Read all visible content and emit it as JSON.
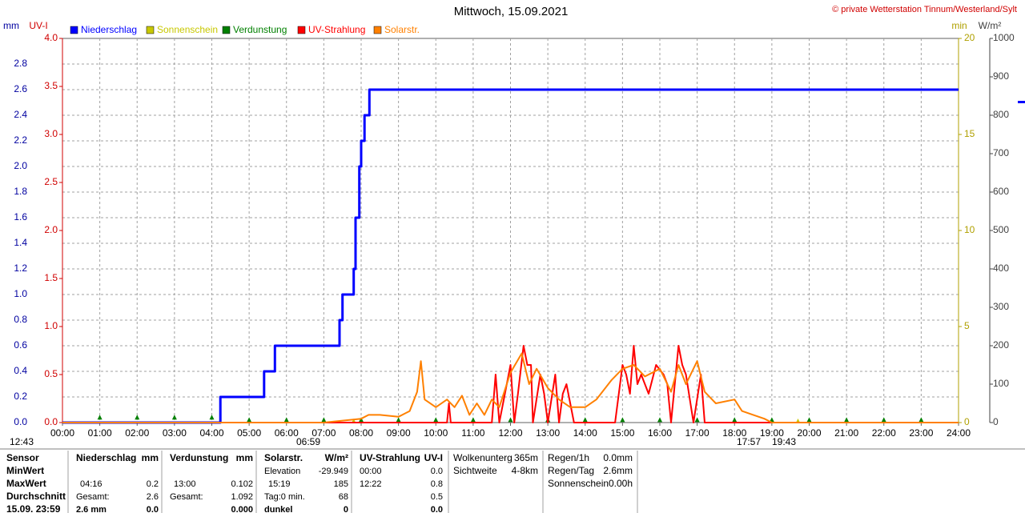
{
  "chart_data": {
    "type": "line",
    "title": "Mittwoch, 15.09.2021",
    "copyright": "© private Wetterstation Tinnum/Westerland/Sylt",
    "xlim": [
      0,
      24
    ],
    "xticks": [
      {
        "value": 0,
        "label": "00:00"
      },
      {
        "value": 1,
        "label": "01:00"
      },
      {
        "value": 2,
        "label": "02:00"
      },
      {
        "value": 3,
        "label": "03:00"
      },
      {
        "value": 4,
        "label": "04:00"
      },
      {
        "value": 5,
        "label": "05:00"
      },
      {
        "value": 6,
        "label": "06:00"
      },
      {
        "value": 7,
        "label": "07:00"
      },
      {
        "value": 8,
        "label": "08:00"
      },
      {
        "value": 9,
        "label": "09:00"
      },
      {
        "value": 10,
        "label": "10:00"
      },
      {
        "value": 11,
        "label": "11:00"
      },
      {
        "value": 12,
        "label": "12:00"
      },
      {
        "value": 13,
        "label": "13:00"
      },
      {
        "value": 14,
        "label": "14:00"
      },
      {
        "value": 15,
        "label": "15:00"
      },
      {
        "value": 16,
        "label": "16:00"
      },
      {
        "value": 17,
        "label": "17:00"
      },
      {
        "value": 18,
        "label": "18:00"
      },
      {
        "value": 19,
        "label": "19:00"
      },
      {
        "value": 20,
        "label": "20:00"
      },
      {
        "value": 21,
        "label": "21:00"
      },
      {
        "value": 22,
        "label": "22:00"
      },
      {
        "value": 23,
        "label": "23:00"
      },
      {
        "value": 24,
        "label": "24:00"
      }
    ],
    "grid": true,
    "axes": [
      {
        "label": "mm",
        "lim": [
          0,
          3.0
        ],
        "color": "#0000a0",
        "ticks": [
          {
            "value": 0,
            "label": "0.0"
          },
          0.2,
          0.4,
          0.6,
          0.8,
          {
            "value": 1,
            "label": "1.0"
          },
          1.2,
          1.4,
          1.6,
          1.8,
          {
            "value": 2,
            "label": "2.0"
          },
          2.2,
          2.4,
          2.6,
          2.8
        ]
      },
      {
        "label": "UV-I",
        "lim": [
          0,
          4
        ],
        "color": "#d00000",
        "ticks": [
          {
            "value": 0,
            "label": "0.0"
          },
          0.5,
          {
            "value": 1,
            "label": "1.0"
          },
          1.5,
          {
            "value": 2,
            "label": "2.0"
          },
          2.5,
          {
            "value": 3,
            "label": "3.0"
          },
          3.5,
          {
            "value": 4,
            "label": "4.0"
          }
        ]
      },
      {
        "label": "min",
        "lim": [
          0,
          20
        ],
        "color": "#b0a000",
        "ticks": [
          0,
          5,
          10,
          15,
          20
        ]
      },
      {
        "label": "W/m²",
        "lim": [
          0,
          1000
        ],
        "color": "#404040",
        "ticks": [
          0,
          100,
          200,
          300,
          400,
          500,
          600,
          700,
          800,
          900,
          1000
        ]
      }
    ],
    "series": [
      {
        "name": "Niederschlag",
        "color": "#0000ff",
        "axis": 0,
        "x": [
          0,
          4.23,
          4.23,
          5.4,
          5.4,
          5.69,
          5.69,
          7.42,
          7.42,
          7.5,
          7.5,
          7.8,
          7.8,
          7.85,
          7.85,
          7.95,
          7.95,
          8.0,
          8.0,
          8.09,
          8.09,
          8.22,
          8.22,
          24
        ],
        "values": [
          0,
          0,
          0.2,
          0.2,
          0.4,
          0.4,
          0.6,
          0.6,
          0.8,
          0.8,
          1.0,
          1.0,
          1.2,
          1.2,
          1.6,
          1.6,
          2.0,
          2.0,
          2.2,
          2.2,
          2.4,
          2.4,
          2.6,
          2.6
        ]
      },
      {
        "name": "Sonnenschein",
        "color": "#c8c800",
        "axis": 2,
        "marker": true,
        "x": [
          7.8,
          19.7
        ],
        "values": [
          0,
          0
        ]
      },
      {
        "name": "Verdunstung",
        "color": "#008000",
        "axis": 0,
        "marker": true,
        "x": [
          1,
          2,
          3,
          4,
          5,
          6,
          7,
          8,
          9,
          10,
          11,
          12,
          13,
          14,
          15,
          16,
          17,
          18,
          19,
          20,
          21,
          22,
          23
        ],
        "values": [
          0.03,
          0.03,
          0.03,
          0.03,
          0.01,
          0.01,
          0.01,
          0.01,
          0.01,
          0.01,
          0.01,
          0.01,
          0.01,
          0.01,
          0.01,
          0.01,
          0.01,
          0.01,
          0.01,
          0.01,
          0.01,
          0.01,
          0.01
        ]
      },
      {
        "name": "UV-Strahlung",
        "color": "#ff0000",
        "axis": 1,
        "x": [
          0,
          10.3,
          10.35,
          10.4,
          11.5,
          11.6,
          11.7,
          11.8,
          12.0,
          12.1,
          12.2,
          12.35,
          12.45,
          12.55,
          12.6,
          12.8,
          12.9,
          13.0,
          13.2,
          13.3,
          13.4,
          13.5,
          13.6,
          13.7,
          14.8,
          15.0,
          15.1,
          15.2,
          15.3,
          15.4,
          15.5,
          15.7,
          15.9,
          16.1,
          16.2,
          16.3,
          16.5,
          16.6,
          16.7,
          16.9,
          17.1,
          17.2,
          24
        ],
        "values": [
          0,
          0,
          0.2,
          0,
          0,
          0.5,
          0,
          0.2,
          0.6,
          0,
          0.3,
          0.8,
          0.6,
          0.6,
          0,
          0.5,
          0.3,
          0,
          0.5,
          0,
          0.3,
          0.4,
          0.2,
          0,
          0,
          0.6,
          0.5,
          0.3,
          0.8,
          0.4,
          0.5,
          0.3,
          0.6,
          0.5,
          0.4,
          0,
          0.8,
          0.6,
          0.5,
          0,
          0.5,
          0,
          0
        ]
      },
      {
        "name": "Solarstr.",
        "color": "#ff8000",
        "axis": 3,
        "x": [
          0,
          7.0,
          7.5,
          8.0,
          8.2,
          8.5,
          9.0,
          9.3,
          9.5,
          9.6,
          9.7,
          10.0,
          10.3,
          10.5,
          10.7,
          10.9,
          11.1,
          11.3,
          11.5,
          11.7,
          12.0,
          12.3,
          12.5,
          12.7,
          13.0,
          13.3,
          13.6,
          14.0,
          14.3,
          14.7,
          15.0,
          15.3,
          15.6,
          16.0,
          16.3,
          16.5,
          16.7,
          17.0,
          17.2,
          17.5,
          18.0,
          18.2,
          18.5,
          18.8,
          19.0,
          24
        ],
        "values": [
          0,
          0,
          5,
          10,
          20,
          20,
          15,
          30,
          80,
          160,
          60,
          40,
          60,
          40,
          70,
          20,
          50,
          20,
          60,
          40,
          130,
          180,
          100,
          140,
          90,
          60,
          40,
          40,
          60,
          110,
          140,
          150,
          120,
          140,
          80,
          150,
          100,
          160,
          80,
          50,
          60,
          30,
          20,
          10,
          0,
          0
        ]
      }
    ],
    "annotations": [
      "12:43",
      "06:59",
      "17:57",
      "19:43"
    ]
  },
  "table": {
    "sensor": [
      "Sensor",
      "MinWert",
      "MaxWert",
      "Durchschnitt",
      "15.09. 23:59"
    ],
    "blocks": [
      {
        "header": [
          "Niederschlag",
          "mm"
        ],
        "rows": [
          [
            null,
            null
          ],
          [
            "04:16",
            "0.2"
          ],
          [
            "Gesamt:",
            "2.6"
          ],
          [
            "2.6 mm",
            "0.0"
          ]
        ]
      },
      {
        "header": [
          "Verdunstung",
          "mm"
        ],
        "rows": [
          [
            null,
            null
          ],
          [
            "13:00",
            "0.102"
          ],
          [
            "Gesamt:",
            "1.092"
          ],
          [
            null,
            "0.000"
          ]
        ]
      },
      {
        "header": [
          "Solarstr.",
          "W/m²"
        ],
        "rows": [
          [
            "Elevation",
            "-29.949"
          ],
          [
            "15:19",
            "185"
          ],
          [
            "Tag:0 min.",
            "68"
          ],
          [
            "dunkel",
            "0"
          ]
        ]
      },
      {
        "header": [
          "UV-Strahlung",
          "UV-I"
        ],
        "rows": [
          [
            "00:00",
            "0.0"
          ],
          [
            "12:22",
            "0.8"
          ],
          [
            null,
            "0.5"
          ],
          [
            null,
            "0.0"
          ]
        ]
      }
    ],
    "info": [
      [
        [
          "Wolkenunterg",
          "365m"
        ],
        [
          "Sichtweite",
          "4-8km"
        ]
      ],
      [
        [
          "Regen/1h",
          "0.0mm"
        ],
        [
          "Regen/Tag",
          "2.6mm"
        ],
        [
          "Sonnenschein",
          "0.00h"
        ]
      ]
    ]
  }
}
